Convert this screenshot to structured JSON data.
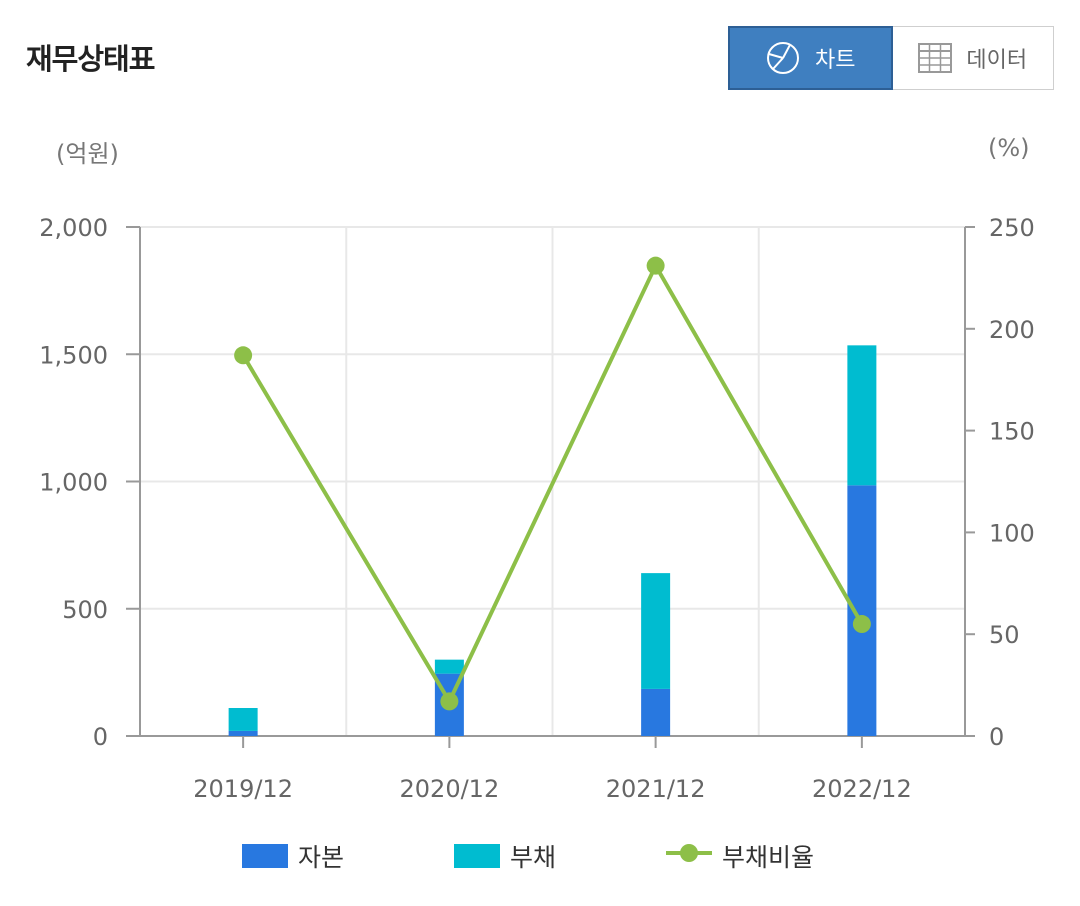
{
  "header": {
    "title": "재무상태표",
    "chart_toggle_label": "차트",
    "data_toggle_label": "데이터"
  },
  "colors": {
    "capital": "#2878e0",
    "liabilities": "#00bcd0",
    "ratio": "#8dbf48",
    "toggle_active": "#3f7fc0"
  },
  "chart_data": {
    "type": "bar",
    "stacked": true,
    "categories": [
      "2019/12",
      "2020/12",
      "2021/12",
      "2022/12"
    ],
    "y_left": {
      "unit_label": "(억원)",
      "range": [
        0,
        2000
      ],
      "ticks": [
        "0",
        "500",
        "1,000",
        "1,500",
        "2,000"
      ],
      "tick_values": [
        0,
        500,
        1000,
        1500,
        2000
      ]
    },
    "y_right": {
      "unit_label": "(%)",
      "range": [
        0,
        250
      ],
      "ticks": [
        "0",
        "50",
        "100",
        "150",
        "200",
        "250"
      ],
      "tick_values": [
        0,
        50,
        100,
        150,
        200,
        250
      ]
    },
    "series": [
      {
        "name": "자본",
        "type": "bar",
        "axis": "left",
        "values": [
          20,
          245,
          185,
          985
        ]
      },
      {
        "name": "부채",
        "type": "bar",
        "axis": "left",
        "values": [
          90,
          55,
          455,
          550
        ]
      },
      {
        "name": "부채비율",
        "type": "line",
        "axis": "right",
        "values": [
          187,
          17,
          231,
          55
        ]
      }
    ],
    "grid": true,
    "legend_position": "bottom"
  }
}
